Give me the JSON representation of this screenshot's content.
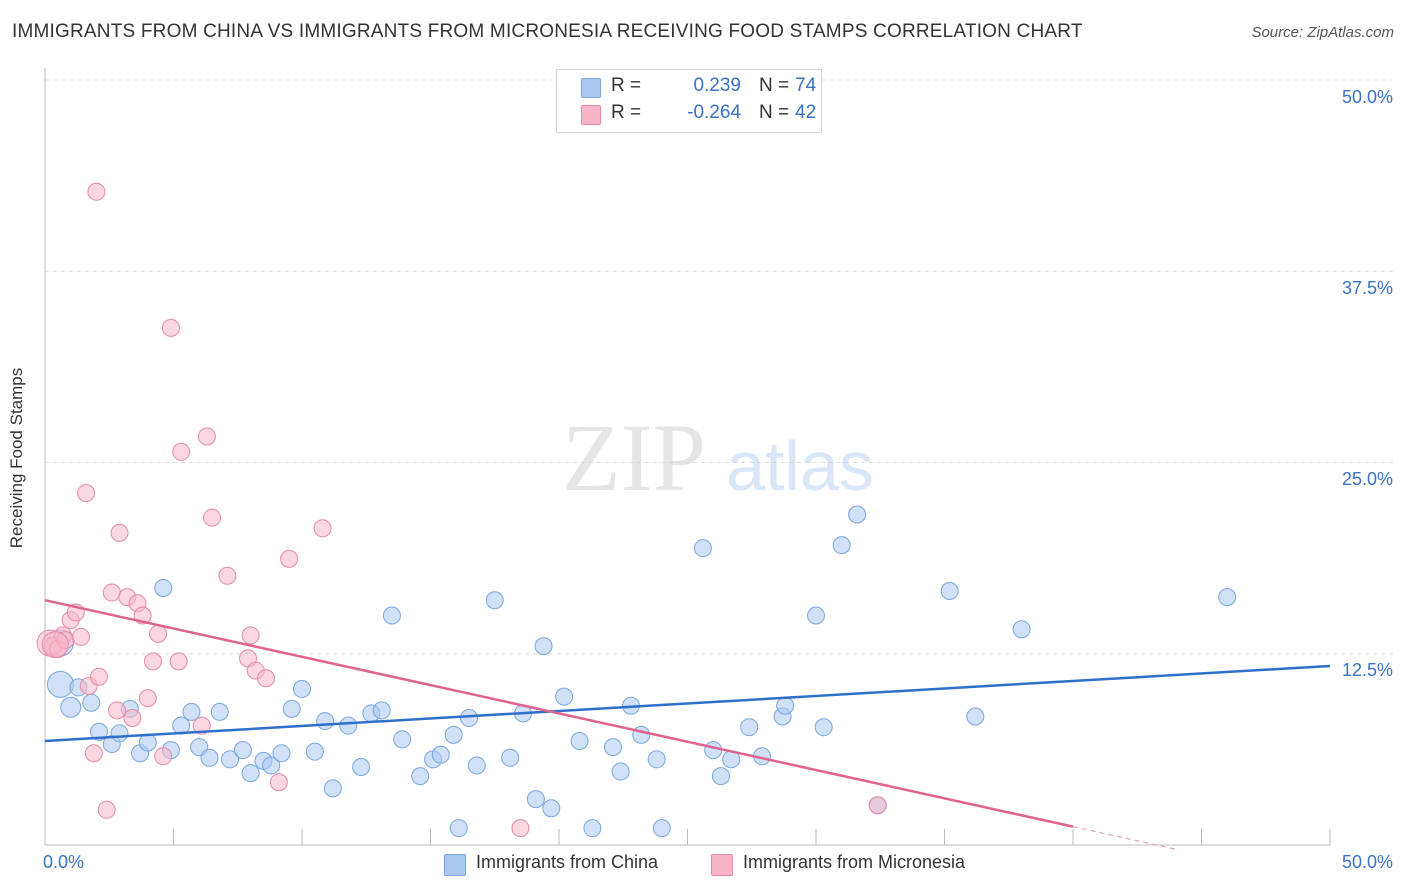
{
  "title": "IMMIGRANTS FROM CHINA VS IMMIGRANTS FROM MICRONESIA RECEIVING FOOD STAMPS CORRELATION CHART",
  "source": "Source: ZipAtlas.com",
  "watermark": {
    "zip": "ZIP",
    "atlas": "atlas"
  },
  "stats": {
    "china": {
      "r_label": "R =",
      "r_value": "0.239",
      "n_label": "N =",
      "n_value": "74",
      "color": "#a9c8f0"
    },
    "micronesia": {
      "r_label": "R =",
      "r_value": "-0.264",
      "n_label": "N =",
      "n_value": "42",
      "color": "#f7b6c8"
    }
  },
  "legend": {
    "china": "Immigrants from China",
    "micronesia": "Immigrants from Micronesia"
  },
  "colors": {
    "china_fill": "#a9c8f0",
    "china_stroke": "#7aa6de",
    "china_line": "#2f6fcc",
    "micronesia_fill": "#f7b6c8",
    "micronesia_stroke": "#e58aa6",
    "micronesia_line": "#e0638e",
    "tick_text": "#3a72c6"
  },
  "chart_data": {
    "type": "scatter",
    "title": "IMMIGRANTS FROM CHINA VS IMMIGRANTS FROM MICRONESIA RECEIVING FOOD STAMPS CORRELATION CHART",
    "xlabel": "",
    "ylabel": "Receiving Food Stamps",
    "xlim": [
      0,
      50
    ],
    "ylim": [
      0,
      50
    ],
    "x_tick_labels": [
      "0.0%",
      "50.0%"
    ],
    "y_ticks": [
      12.5,
      25.0,
      37.5,
      50.0
    ],
    "y_tick_labels": [
      "12.5%",
      "25.0%",
      "37.5%",
      "50.0%"
    ],
    "grid": "horizontal dashed",
    "legend_position": "bottom",
    "series": [
      {
        "name": "Immigrants from China",
        "trend": [
          [
            0,
            6.8
          ],
          [
            50,
            11.7
          ]
        ],
        "points": [
          [
            0.6,
            13.2
          ],
          [
            0.6,
            10.5
          ],
          [
            1.0,
            9.0
          ],
          [
            1.3,
            10.3
          ],
          [
            1.8,
            9.3
          ],
          [
            2.1,
            7.4
          ],
          [
            2.6,
            6.6
          ],
          [
            2.9,
            7.3
          ],
          [
            3.3,
            8.9
          ],
          [
            3.7,
            6.0
          ],
          [
            4.0,
            6.7
          ],
          [
            4.6,
            16.8
          ],
          [
            4.9,
            6.2
          ],
          [
            5.3,
            7.8
          ],
          [
            5.7,
            8.7
          ],
          [
            6.0,
            6.4
          ],
          [
            6.4,
            5.7
          ],
          [
            6.8,
            8.7
          ],
          [
            7.2,
            5.6
          ],
          [
            7.7,
            6.2
          ],
          [
            8.0,
            4.7
          ],
          [
            8.5,
            5.5
          ],
          [
            8.8,
            5.2
          ],
          [
            9.2,
            6.0
          ],
          [
            9.6,
            8.9
          ],
          [
            10.0,
            10.2
          ],
          [
            10.5,
            6.1
          ],
          [
            10.9,
            8.1
          ],
          [
            11.2,
            3.7
          ],
          [
            11.8,
            7.8
          ],
          [
            12.3,
            5.1
          ],
          [
            12.7,
            8.6
          ],
          [
            13.1,
            8.8
          ],
          [
            13.5,
            15.0
          ],
          [
            13.9,
            6.9
          ],
          [
            14.6,
            4.5
          ],
          [
            15.1,
            5.6
          ],
          [
            15.4,
            5.9
          ],
          [
            15.9,
            7.2
          ],
          [
            16.1,
            1.1
          ],
          [
            16.5,
            8.3
          ],
          [
            16.8,
            5.2
          ],
          [
            17.5,
            16.0
          ],
          [
            18.1,
            5.7
          ],
          [
            18.6,
            8.6
          ],
          [
            19.1,
            3.0
          ],
          [
            19.4,
            13.0
          ],
          [
            19.7,
            2.4
          ],
          [
            20.2,
            9.7
          ],
          [
            20.8,
            6.8
          ],
          [
            21.3,
            1.1
          ],
          [
            22.1,
            6.4
          ],
          [
            22.4,
            4.8
          ],
          [
            22.8,
            9.1
          ],
          [
            23.2,
            7.2
          ],
          [
            23.8,
            5.6
          ],
          [
            24.0,
            1.1
          ],
          [
            25.6,
            19.4
          ],
          [
            26.0,
            6.2
          ],
          [
            26.3,
            4.5
          ],
          [
            26.7,
            5.6
          ],
          [
            27.4,
            7.7
          ],
          [
            27.9,
            5.8
          ],
          [
            28.7,
            8.4
          ],
          [
            28.8,
            9.1
          ],
          [
            30.0,
            15.0
          ],
          [
            30.3,
            7.7
          ],
          [
            31.0,
            19.6
          ],
          [
            31.6,
            21.6
          ],
          [
            32.4,
            2.6
          ],
          [
            35.2,
            16.6
          ],
          [
            36.2,
            8.4
          ],
          [
            38.0,
            14.1
          ],
          [
            46.0,
            16.2
          ]
        ],
        "point_sizes": {
          "0": "large",
          "1": "large",
          "2": "medium"
        }
      },
      {
        "name": "Immigrants from Micronesia",
        "trend": [
          [
            0,
            16.0
          ],
          [
            40,
            1.2
          ]
        ],
        "points": [
          [
            0.2,
            13.2
          ],
          [
            0.3,
            13.0
          ],
          [
            0.5,
            12.8
          ],
          [
            0.7,
            13.7
          ],
          [
            0.8,
            13.4
          ],
          [
            1.0,
            14.7
          ],
          [
            1.2,
            15.2
          ],
          [
            1.4,
            13.6
          ],
          [
            1.6,
            23.0
          ],
          [
            1.7,
            10.4
          ],
          [
            1.9,
            6.0
          ],
          [
            2.1,
            11.0
          ],
          [
            2.4,
            2.3
          ],
          [
            2.6,
            16.5
          ],
          [
            2.8,
            8.8
          ],
          [
            2.9,
            20.4
          ],
          [
            3.2,
            16.2
          ],
          [
            3.4,
            8.3
          ],
          [
            3.6,
            15.8
          ],
          [
            3.8,
            15.0
          ],
          [
            4.0,
            9.6
          ],
          [
            4.2,
            12.0
          ],
          [
            4.4,
            13.8
          ],
          [
            4.6,
            5.8
          ],
          [
            4.9,
            33.8
          ],
          [
            5.2,
            12.0
          ],
          [
            5.3,
            25.7
          ],
          [
            6.1,
            7.8
          ],
          [
            6.3,
            26.7
          ],
          [
            6.5,
            21.4
          ],
          [
            7.1,
            17.6
          ],
          [
            7.9,
            12.2
          ],
          [
            8.0,
            13.7
          ],
          [
            8.2,
            11.4
          ],
          [
            8.6,
            10.9
          ],
          [
            9.1,
            4.1
          ],
          [
            9.5,
            18.7
          ],
          [
            10.8,
            20.7
          ],
          [
            18.5,
            1.1
          ],
          [
            32.4,
            2.6
          ],
          [
            2.0,
            42.7
          ],
          [
            0.4,
            13.1
          ]
        ],
        "point_sizes": {
          "0": "large",
          "41": "large"
        }
      }
    ]
  }
}
